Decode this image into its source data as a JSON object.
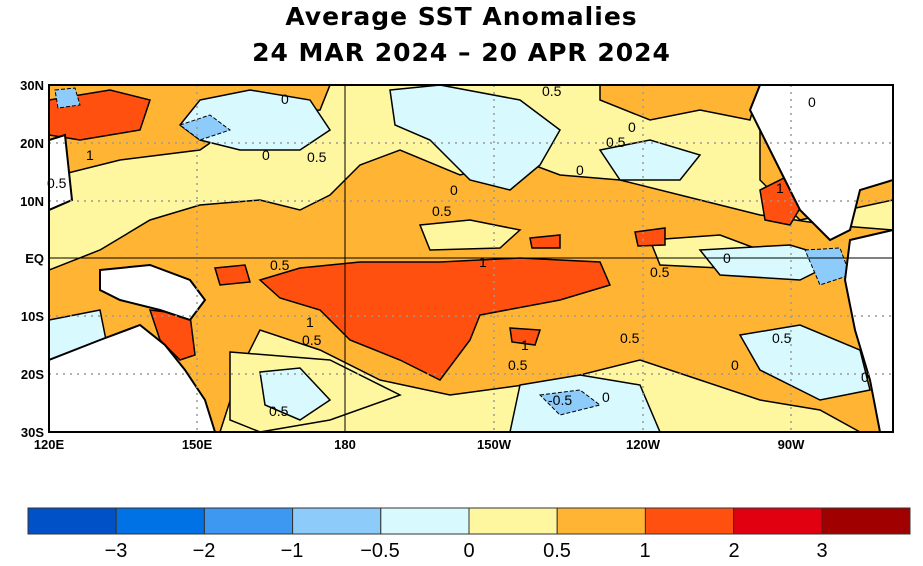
{
  "title_line1": "Average SST Anomalies",
  "title_line2": "24 MAR 2024 – 20 APR 2024",
  "map": {
    "region": "Tropical Pacific",
    "lat_ticks": [
      "30N",
      "20N",
      "10N",
      "EQ",
      "10S",
      "20S",
      "30S"
    ],
    "lon_ticks": [
      "120E",
      "150E",
      "180",
      "150W",
      "120W",
      "90W"
    ],
    "grid": "dotted",
    "contour_labels": [
      "1",
      "0.5",
      "0",
      "0.5",
      "0",
      "0.5",
      "0",
      "0.5",
      "0",
      "0",
      "0.5",
      "1",
      "0.5",
      "1",
      "0.5",
      "0",
      "1",
      "0.5",
      "1",
      "0.5",
      "0.5",
      "0.5",
      "0",
      "0",
      "-0.5",
      "0",
      "0.5",
      "0"
    ]
  },
  "colorbar": {
    "colors": [
      "#0050c8",
      "#0072e6",
      "#3c98f0",
      "#8ccbfa",
      "#d8faff",
      "#fff7a0",
      "#ffb433",
      "#ff5010",
      "#e00010",
      "#a00000"
    ],
    "labels": [
      "−3",
      "−2",
      "−1",
      "−0.5",
      "0",
      "0.5",
      "1",
      "2",
      "3"
    ]
  }
}
